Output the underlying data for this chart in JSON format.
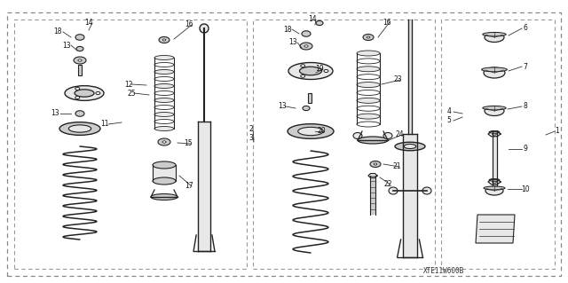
{
  "bg_color": "#ffffff",
  "line_color": "#222222",
  "gray_fill": "#cccccc",
  "light_gray": "#e8e8e8",
  "mid_gray": "#aaaaaa",
  "fig_width": 6.4,
  "fig_height": 3.19,
  "dpi": 100,
  "title_code": "XTE11W600B"
}
